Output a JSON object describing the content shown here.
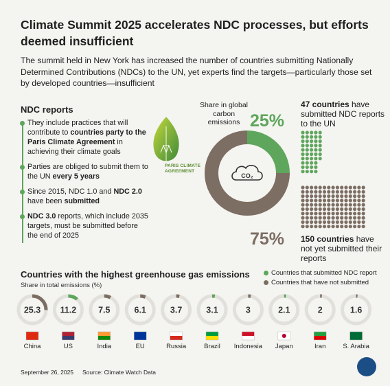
{
  "header": {
    "title": "Climate Summit 2025 accelerates NDC processes, but efforts deemed insufficient",
    "subtitle": "The summit held in New York has increased the number of countries submitting Nationally Determined Contributions (NDCs) to the UN, yet experts find the targets—particularly those set by developed countries—insufficient"
  },
  "ndc": {
    "heading": "NDC reports",
    "bullets": [
      {
        "pre": "They include practices that will contribute to ",
        "bold": "countries party to the Paris Climate Agreement",
        "post": " in achieving their climate goals"
      },
      {
        "pre": "Parties are obliged to submit them to the UN ",
        "bold": "every 5 years",
        "post": ""
      },
      {
        "pre": "Since 2015, NDC 1.0 and ",
        "bold": "NDC 2.0",
        "post": " have been ",
        "bold2": "submitted"
      },
      {
        "pre": "",
        "bold": "NDC 3.0",
        "post": " reports, which include 2035 targets, must be submitted before the end of 2025"
      }
    ],
    "leaf_label_1": "PARIS CLIMATE",
    "leaf_label_2": "AGREEMENT"
  },
  "donut": {
    "label": "Share in global carbon emissions",
    "submitted_pct": "25%",
    "not_submitted_pct": "75%",
    "center_icon": "co2-cloud-icon"
  },
  "countries_count": {
    "submitted_bold": "47 countries",
    "submitted_rest": " have submitted NDC reports to the UN",
    "not_bold": "150 countries",
    "not_rest": " have not yet submitted their reports"
  },
  "emissions": {
    "heading": "Countries with the highest greenhouse gas emissions",
    "subheading": "Share in total emissions (%)",
    "legend": [
      {
        "label": "Countries that submitted NDC report",
        "color": "#5ea65c"
      },
      {
        "label": "Countries that have not submitted",
        "color": "#7d6e63"
      }
    ]
  },
  "colors": {
    "green": "#5ea65c",
    "brown": "#7d6e63",
    "ring_bg": "#e2e0db"
  },
  "chart_data": [
    {
      "type": "pie",
      "title": "Share in global carbon emissions",
      "labels": [
        "Submitted NDC",
        "Not submitted"
      ],
      "values": [
        25,
        75
      ]
    },
    {
      "type": "waffle",
      "labels": [
        "Submitted NDC report",
        "Not yet submitted"
      ],
      "values": [
        47,
        150
      ]
    },
    {
      "type": "donut-row",
      "title": "Countries with the highest greenhouse gas emissions",
      "subtitle": "Share in total emissions (%)",
      "categories": [
        "China",
        "US",
        "India",
        "EU",
        "Russia",
        "Brazil",
        "Indonesia",
        "Japan",
        "Iran",
        "S. Arabia"
      ],
      "values": [
        25.3,
        11.2,
        7.5,
        6.1,
        3.7,
        3.1,
        3,
        2.1,
        2,
        1.6
      ],
      "value_labels": [
        "25.3",
        "11.2",
        "7.5",
        "6.1",
        "3.7",
        "3.1",
        "3",
        "2.1",
        "2",
        "1.6"
      ],
      "submitted": [
        false,
        true,
        false,
        false,
        false,
        true,
        false,
        true,
        false,
        false
      ]
    }
  ],
  "footer": {
    "date": "September 26, 2025",
    "source": "Source: Climate Watch Data"
  }
}
